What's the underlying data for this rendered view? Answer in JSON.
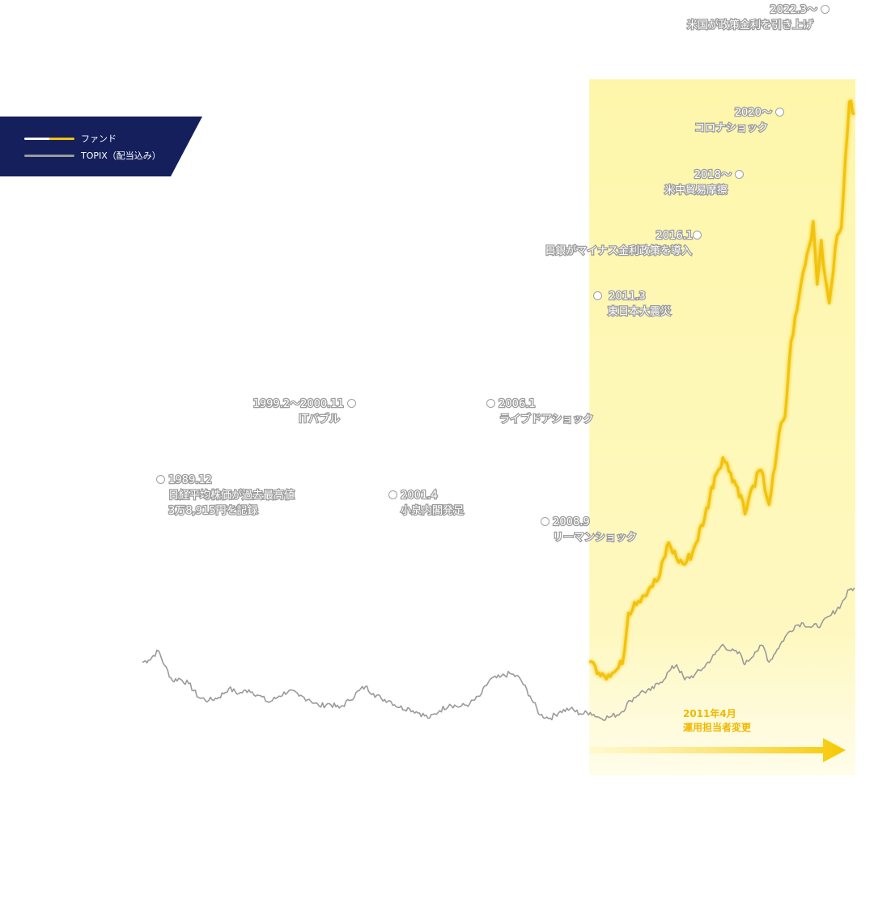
{
  "chart_data": {
    "type": "line",
    "title": "",
    "xlabel": "",
    "ylabel": "",
    "legend": {
      "placement": "top-left",
      "entries": [
        {
          "label": "ファンド",
          "color": "#f2c30d"
        },
        {
          "label": "TOPIX（配当込み）",
          "color": "#9a9a9a"
        }
      ]
    },
    "series": [
      {
        "name": "ファンド",
        "color": "#f2c30d",
        "values": [
          [
            2011.25,
            100
          ],
          [
            2011.55,
            93
          ],
          [
            2011.9,
            82
          ],
          [
            2012.2,
            80
          ],
          [
            2012.5,
            84
          ],
          [
            2012.9,
            97
          ],
          [
            2013.2,
            178
          ],
          [
            2013.5,
            195
          ],
          [
            2013.9,
            205
          ],
          [
            2014.3,
            220
          ],
          [
            2014.7,
            232
          ],
          [
            2015.2,
            290
          ],
          [
            2015.6,
            265
          ],
          [
            2016.0,
            255
          ],
          [
            2016.4,
            275
          ],
          [
            2017.0,
            330
          ],
          [
            2017.5,
            395
          ],
          [
            2017.9,
            425
          ],
          [
            2018.3,
            400
          ],
          [
            2018.8,
            365
          ],
          [
            2019.0,
            335
          ],
          [
            2019.4,
            380
          ],
          [
            2019.8,
            405
          ],
          [
            2020.2,
            350
          ],
          [
            2020.5,
            410
          ],
          [
            2020.8,
            480
          ],
          [
            2021.0,
            490
          ],
          [
            2021.3,
            610
          ],
          [
            2021.6,
            660
          ],
          [
            2021.9,
            720
          ],
          [
            2022.2,
            760
          ],
          [
            2022.4,
            800
          ],
          [
            2022.6,
            700
          ],
          [
            2022.8,
            770
          ],
          [
            2023.0,
            710
          ],
          [
            2023.2,
            670
          ],
          [
            2023.5,
            760
          ],
          [
            2023.8,
            790
          ],
          [
            2024.0,
            900
          ],
          [
            2024.2,
            990
          ],
          [
            2024.45,
            970
          ]
        ]
      },
      {
        "name": "TOPIX（配当込み）",
        "color": "#9a9a9a",
        "values": [
          [
            1989.0,
            100
          ],
          [
            1989.3,
            103
          ],
          [
            1989.8,
            118
          ],
          [
            1990.1,
            95
          ],
          [
            1990.5,
            70
          ],
          [
            1990.8,
            74
          ],
          [
            1991.3,
            66
          ],
          [
            1991.8,
            44
          ],
          [
            1992.3,
            39
          ],
          [
            1992.8,
            44
          ],
          [
            1993.3,
            58
          ],
          [
            1993.8,
            50
          ],
          [
            1994.3,
            56
          ],
          [
            1994.8,
            47
          ],
          [
            1995.3,
            36
          ],
          [
            1995.8,
            46
          ],
          [
            1996.3,
            55
          ],
          [
            1996.8,
            46
          ],
          [
            1997.3,
            41
          ],
          [
            1997.8,
            30
          ],
          [
            1998.3,
            34
          ],
          [
            1998.8,
            27
          ],
          [
            1999.3,
            39
          ],
          [
            1999.8,
            55
          ],
          [
            2000.1,
            61
          ],
          [
            2000.5,
            50
          ],
          [
            2000.9,
            42
          ],
          [
            2001.3,
            39
          ],
          [
            2001.8,
            28
          ],
          [
            2002.3,
            26
          ],
          [
            2002.8,
            19
          ],
          [
            2003.3,
            11
          ],
          [
            2003.8,
            23
          ],
          [
            2004.3,
            33
          ],
          [
            2004.8,
            29
          ],
          [
            2005.3,
            34
          ],
          [
            2005.8,
            46
          ],
          [
            2006.3,
            72
          ],
          [
            2006.8,
            76
          ],
          [
            2007.3,
            82
          ],
          [
            2007.8,
            74
          ],
          [
            2008.3,
            46
          ],
          [
            2008.8,
            16
          ],
          [
            2009.3,
            11
          ],
          [
            2009.8,
            22
          ],
          [
            2010.3,
            26
          ],
          [
            2010.8,
            18
          ],
          [
            2011.3,
            20
          ],
          [
            2011.8,
            11
          ],
          [
            2012.3,
            13
          ],
          [
            2012.8,
            19
          ],
          [
            2013.3,
            39
          ],
          [
            2013.8,
            52
          ],
          [
            2014.3,
            55
          ],
          [
            2014.8,
            68
          ],
          [
            2015.3,
            88
          ],
          [
            2015.6,
            96
          ],
          [
            2016.0,
            72
          ],
          [
            2016.5,
            80
          ],
          [
            2016.9,
            90
          ],
          [
            2017.5,
            112
          ],
          [
            2017.9,
            128
          ],
          [
            2018.3,
            118
          ],
          [
            2018.8,
            112
          ],
          [
            2019.0,
            96
          ],
          [
            2019.5,
            116
          ],
          [
            2019.9,
            126
          ],
          [
            2020.2,
            100
          ],
          [
            2020.6,
            120
          ],
          [
            2021.0,
            140
          ],
          [
            2021.5,
            158
          ],
          [
            2021.9,
            162
          ],
          [
            2022.3,
            155
          ],
          [
            2022.8,
            160
          ],
          [
            2023.3,
            175
          ],
          [
            2023.8,
            192
          ],
          [
            2024.2,
            215
          ],
          [
            2024.45,
            218
          ]
        ]
      }
    ],
    "xlim": [
      1989.0,
      2024.5
    ],
    "ylim": [
      0,
      1000
    ],
    "grid": false,
    "shaded_region": {
      "x_start": 2011.25,
      "x_end": 2024.5
    },
    "annotations": [
      {
        "id": "a-1989",
        "date": "1989.12",
        "text": "日経平均株価が過去最高値",
        "text2": "3万8,915円を記録"
      },
      {
        "id": "a-1999",
        "date": "1999.2～2000.11",
        "text": "ITバブル"
      },
      {
        "id": "a-2001",
        "date": "2001.4",
        "text": "小泉内閣発足"
      },
      {
        "id": "a-2006",
        "date": "2006.1",
        "text": "ライブドアショック"
      },
      {
        "id": "a-2008",
        "date": "2008.9",
        "text": "リーマンショック"
      },
      {
        "id": "a-2011",
        "date": "2011.3",
        "text": "東日本大震災"
      },
      {
        "id": "a-2016",
        "date": "2016.1",
        "text": "日銀がマイナス金利政策を導入"
      },
      {
        "id": "a-2018",
        "date": "2018～",
        "text": "米中貿易摩擦"
      },
      {
        "id": "a-2020",
        "date": "2020～",
        "text": "コロナショック"
      },
      {
        "id": "a-2022",
        "date": "2022.3～",
        "text": "米国が政策金利を引き上げ"
      }
    ],
    "manager_change": {
      "line1": "2011年4月",
      "line2": "運用担当者変更"
    }
  }
}
